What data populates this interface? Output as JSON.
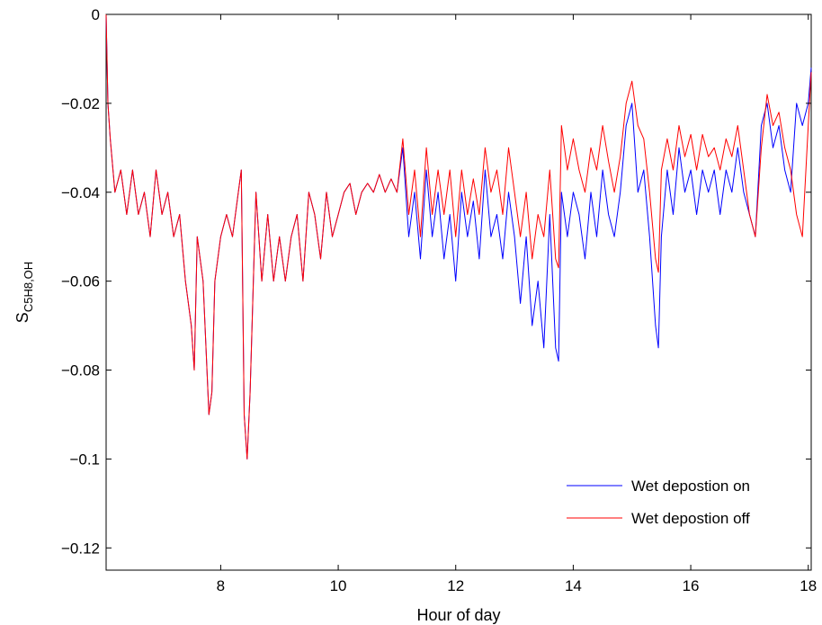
{
  "chart_data": {
    "type": "line",
    "title": "",
    "xlabel": "Hour of day",
    "ylabel_main": "S",
    "ylabel_sub": "C5H8,OH",
    "xlim": [
      6.05,
      18.05
    ],
    "ylim": [
      -0.125,
      0
    ],
    "xticks": [
      8,
      10,
      12,
      14,
      16,
      18
    ],
    "xtick_labels": [
      "8",
      "10",
      "12",
      "14",
      "16",
      "18"
    ],
    "yticks": [
      0,
      -0.02,
      -0.04,
      -0.06,
      -0.08,
      -0.1,
      -0.12
    ],
    "ytick_labels": [
      "0",
      "−0.02",
      "−0.04",
      "−0.06",
      "−0.08",
      "−0.1",
      "−0.12"
    ],
    "grid": false,
    "legend_position": "bottom-right",
    "series": [
      {
        "name": "Wet depostion on",
        "color": "#0000ff",
        "x": [
          6.05,
          6.08,
          6.12,
          6.2,
          6.3,
          6.4,
          6.5,
          6.6,
          6.7,
          6.8,
          6.9,
          7.0,
          7.1,
          7.2,
          7.3,
          7.4,
          7.5,
          7.55,
          7.6,
          7.7,
          7.8,
          7.85,
          7.9,
          8.0,
          8.1,
          8.2,
          8.3,
          8.35,
          8.4,
          8.45,
          8.5,
          8.6,
          8.7,
          8.8,
          8.9,
          9.0,
          9.1,
          9.2,
          9.3,
          9.4,
          9.5,
          9.6,
          9.7,
          9.8,
          9.9,
          10.0,
          10.1,
          10.2,
          10.3,
          10.4,
          10.5,
          10.6,
          10.7,
          10.8,
          10.9,
          11.0,
          11.1,
          11.2,
          11.3,
          11.4,
          11.5,
          11.6,
          11.7,
          11.8,
          11.9,
          12.0,
          12.1,
          12.2,
          12.3,
          12.4,
          12.5,
          12.6,
          12.7,
          12.8,
          12.9,
          13.0,
          13.1,
          13.2,
          13.3,
          13.4,
          13.5,
          13.6,
          13.7,
          13.75,
          13.8,
          13.9,
          14.0,
          14.1,
          14.2,
          14.3,
          14.4,
          14.5,
          14.6,
          14.7,
          14.8,
          14.9,
          15.0,
          15.1,
          15.2,
          15.3,
          15.4,
          15.45,
          15.5,
          15.6,
          15.7,
          15.8,
          15.9,
          16.0,
          16.1,
          16.2,
          16.3,
          16.4,
          16.5,
          16.6,
          16.7,
          16.8,
          16.9,
          17.0,
          17.1,
          17.2,
          17.3,
          17.4,
          17.5,
          17.6,
          17.7,
          17.8,
          17.9,
          18.0,
          18.05
        ],
        "y": [
          0.0,
          -0.02,
          -0.028,
          -0.04,
          -0.035,
          -0.045,
          -0.035,
          -0.045,
          -0.04,
          -0.05,
          -0.035,
          -0.045,
          -0.04,
          -0.05,
          -0.045,
          -0.06,
          -0.07,
          -0.08,
          -0.05,
          -0.06,
          -0.09,
          -0.085,
          -0.06,
          -0.05,
          -0.045,
          -0.05,
          -0.04,
          -0.035,
          -0.09,
          -0.1,
          -0.085,
          -0.04,
          -0.06,
          -0.045,
          -0.06,
          -0.05,
          -0.06,
          -0.05,
          -0.045,
          -0.06,
          -0.04,
          -0.045,
          -0.055,
          -0.04,
          -0.05,
          -0.045,
          -0.04,
          -0.038,
          -0.045,
          -0.04,
          -0.038,
          -0.04,
          -0.036,
          -0.04,
          -0.037,
          -0.04,
          -0.03,
          -0.05,
          -0.04,
          -0.055,
          -0.035,
          -0.05,
          -0.04,
          -0.055,
          -0.045,
          -0.06,
          -0.04,
          -0.05,
          -0.042,
          -0.055,
          -0.035,
          -0.05,
          -0.045,
          -0.055,
          -0.04,
          -0.05,
          -0.065,
          -0.05,
          -0.07,
          -0.06,
          -0.075,
          -0.045,
          -0.075,
          -0.078,
          -0.04,
          -0.05,
          -0.04,
          -0.045,
          -0.055,
          -0.04,
          -0.05,
          -0.035,
          -0.045,
          -0.05,
          -0.04,
          -0.025,
          -0.02,
          -0.04,
          -0.035,
          -0.05,
          -0.07,
          -0.075,
          -0.05,
          -0.035,
          -0.045,
          -0.03,
          -0.04,
          -0.035,
          -0.045,
          -0.035,
          -0.04,
          -0.035,
          -0.045,
          -0.035,
          -0.04,
          -0.03,
          -0.04,
          -0.045,
          -0.05,
          -0.025,
          -0.02,
          -0.03,
          -0.025,
          -0.035,
          -0.04,
          -0.02,
          -0.025,
          -0.02,
          -0.012
        ]
      },
      {
        "name": "Wet depostion off",
        "color": "#ff0000",
        "x": [
          6.05,
          6.08,
          6.12,
          6.2,
          6.3,
          6.4,
          6.5,
          6.6,
          6.7,
          6.8,
          6.9,
          7.0,
          7.1,
          7.2,
          7.3,
          7.4,
          7.5,
          7.55,
          7.6,
          7.7,
          7.8,
          7.85,
          7.9,
          8.0,
          8.1,
          8.2,
          8.3,
          8.35,
          8.4,
          8.45,
          8.5,
          8.6,
          8.7,
          8.8,
          8.9,
          9.0,
          9.1,
          9.2,
          9.3,
          9.4,
          9.5,
          9.6,
          9.7,
          9.8,
          9.9,
          10.0,
          10.1,
          10.2,
          10.3,
          10.4,
          10.5,
          10.6,
          10.7,
          10.8,
          10.9,
          11.0,
          11.1,
          11.2,
          11.3,
          11.4,
          11.5,
          11.6,
          11.7,
          11.8,
          11.9,
          12.0,
          12.1,
          12.2,
          12.3,
          12.4,
          12.5,
          12.6,
          12.7,
          12.8,
          12.9,
          13.0,
          13.1,
          13.2,
          13.3,
          13.4,
          13.5,
          13.6,
          13.7,
          13.75,
          13.8,
          13.9,
          14.0,
          14.1,
          14.2,
          14.3,
          14.4,
          14.5,
          14.6,
          14.7,
          14.8,
          14.9,
          15.0,
          15.1,
          15.2,
          15.3,
          15.4,
          15.45,
          15.5,
          15.6,
          15.7,
          15.8,
          15.9,
          16.0,
          16.1,
          16.2,
          16.3,
          16.4,
          16.5,
          16.6,
          16.7,
          16.8,
          16.9,
          17.0,
          17.1,
          17.2,
          17.3,
          17.4,
          17.5,
          17.6,
          17.7,
          17.8,
          17.9,
          18.0,
          18.05
        ],
        "y": [
          0.0,
          -0.02,
          -0.028,
          -0.04,
          -0.035,
          -0.045,
          -0.035,
          -0.045,
          -0.04,
          -0.05,
          -0.035,
          -0.045,
          -0.04,
          -0.05,
          -0.045,
          -0.06,
          -0.07,
          -0.08,
          -0.05,
          -0.06,
          -0.09,
          -0.085,
          -0.06,
          -0.05,
          -0.045,
          -0.05,
          -0.04,
          -0.035,
          -0.09,
          -0.1,
          -0.085,
          -0.04,
          -0.06,
          -0.045,
          -0.06,
          -0.05,
          -0.06,
          -0.05,
          -0.045,
          -0.06,
          -0.04,
          -0.045,
          -0.055,
          -0.04,
          -0.05,
          -0.045,
          -0.04,
          -0.038,
          -0.045,
          -0.04,
          -0.038,
          -0.04,
          -0.036,
          -0.04,
          -0.037,
          -0.04,
          -0.028,
          -0.045,
          -0.035,
          -0.05,
          -0.03,
          -0.045,
          -0.035,
          -0.045,
          -0.035,
          -0.05,
          -0.035,
          -0.045,
          -0.037,
          -0.045,
          -0.03,
          -0.04,
          -0.035,
          -0.045,
          -0.03,
          -0.04,
          -0.05,
          -0.04,
          -0.055,
          -0.045,
          -0.05,
          -0.035,
          -0.055,
          -0.057,
          -0.025,
          -0.035,
          -0.028,
          -0.035,
          -0.04,
          -0.03,
          -0.035,
          -0.025,
          -0.033,
          -0.04,
          -0.032,
          -0.02,
          -0.015,
          -0.025,
          -0.028,
          -0.04,
          -0.055,
          -0.058,
          -0.035,
          -0.028,
          -0.035,
          -0.025,
          -0.032,
          -0.027,
          -0.035,
          -0.027,
          -0.032,
          -0.03,
          -0.035,
          -0.028,
          -0.032,
          -0.025,
          -0.035,
          -0.045,
          -0.05,
          -0.03,
          -0.018,
          -0.025,
          -0.022,
          -0.03,
          -0.035,
          -0.045,
          -0.05,
          -0.025,
          -0.013
        ]
      }
    ]
  }
}
